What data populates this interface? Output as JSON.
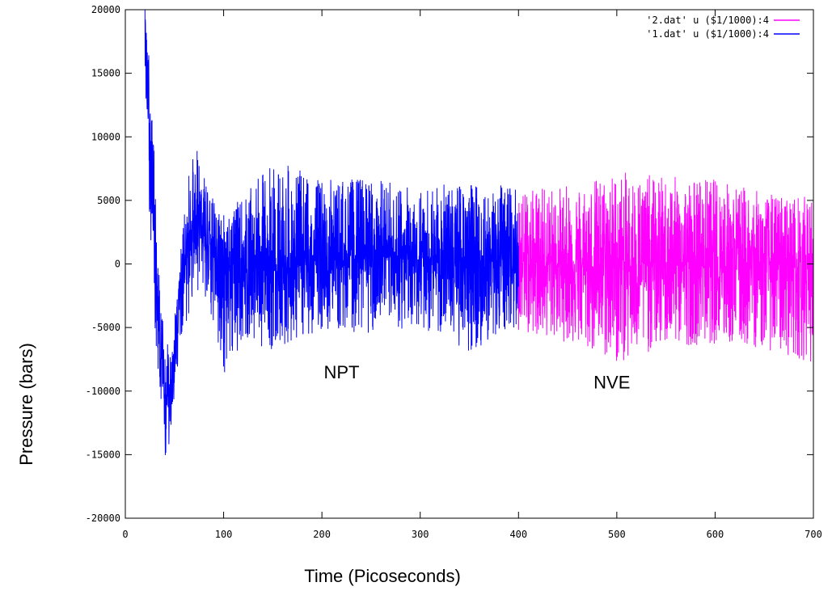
{
  "chart_data": {
    "type": "line",
    "title": "",
    "xlabel": "Time (Picoseconds)",
    "ylabel": "Pressure (bars)",
    "xlim": [
      0,
      700
    ],
    "ylim": [
      -20000,
      20000
    ],
    "x_ticks": [
      0,
      100,
      200,
      300,
      400,
      500,
      600,
      700
    ],
    "y_ticks": [
      20000,
      15000,
      10000,
      5000,
      0,
      -5000,
      -10000,
      -15000,
      -20000
    ],
    "grid": false,
    "legend_position": "top-right",
    "annotations": [
      {
        "text": "NPT",
        "x": 220,
        "y": -9000
      },
      {
        "text": "NVE",
        "x": 495,
        "y": -9800
      }
    ],
    "series": [
      {
        "name": "'2.dat' u ($1/1000):4",
        "color": "#ff00ff",
        "x_range": [
          400,
          700
        ],
        "envelope": {
          "x": [
            400,
            450,
            500,
            550,
            600,
            650,
            700
          ],
          "mean": [
            200,
            0,
            -200,
            0,
            0,
            -100,
            0
          ],
          "high": [
            5800,
            6200,
            7300,
            6900,
            6800,
            5600,
            5300
          ],
          "low": [
            -5200,
            -6200,
            -8000,
            -6500,
            -6300,
            -6700,
            -7800
          ]
        }
      },
      {
        "name": "'1.dat' u ($1/1000):4",
        "color": "#0000ff",
        "x_range": [
          20,
          400
        ],
        "envelope": {
          "x": [
            20,
            25,
            30,
            35,
            40,
            45,
            50,
            55,
            60,
            65,
            70,
            75,
            80,
            90,
            100,
            120,
            150,
            200,
            250,
            300,
            350,
            400
          ],
          "mean": [
            20000,
            9000,
            0,
            -7000,
            -11000,
            -10000,
            -6500,
            -3000,
            0,
            2500,
            4000,
            3500,
            2000,
            500,
            0,
            -300,
            -500,
            200,
            500,
            400,
            300,
            0
          ],
          "high": [
            20000,
            15500,
            8000,
            -1000,
            -6000,
            -6500,
            -3500,
            0,
            4000,
            7500,
            9800,
            8600,
            7300,
            5000,
            4200,
            5200,
            8200,
            6700,
            6800,
            6000,
            6500,
            6000
          ],
          "low": [
            14000,
            3000,
            -5000,
            -11500,
            -16000,
            -14000,
            -10500,
            -7000,
            -5000,
            -3800,
            -2800,
            -2000,
            -3500,
            -5000,
            -8800,
            -6000,
            -6800,
            -5200,
            -5500,
            -5000,
            -7000,
            -4800
          ]
        }
      }
    ]
  }
}
